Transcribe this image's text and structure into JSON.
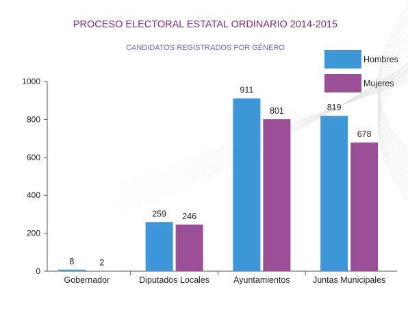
{
  "chart_data": {
    "type": "bar",
    "title": "PROCESO ELECTORAL ESTATAL ORDINARIO 2014-2015",
    "subtitle": "CANDIDATOS REGISTRADOS POR GÉNERO",
    "xlabel": "",
    "ylabel": "",
    "ylim": [
      0,
      1000
    ],
    "yticks": [
      0,
      200,
      400,
      600,
      800,
      1000
    ],
    "grid": false,
    "legend_position": "top-right",
    "categories": [
      "Gobernador",
      "Diputados Locales",
      "Ayuntamientos",
      "Juntas Municipales"
    ],
    "series": [
      {
        "name": "Hombres",
        "values": [
          8,
          259,
          911,
          819
        ],
        "color": "#3d97d8"
      },
      {
        "name": "Mujeres",
        "values": [
          2,
          246,
          801,
          678
        ],
        "color": "#9b4f96"
      }
    ]
  },
  "colors": {
    "title": "#8a2a6e",
    "subtitle": "#6b66b0",
    "text": "#222222",
    "axis": "#555555"
  }
}
